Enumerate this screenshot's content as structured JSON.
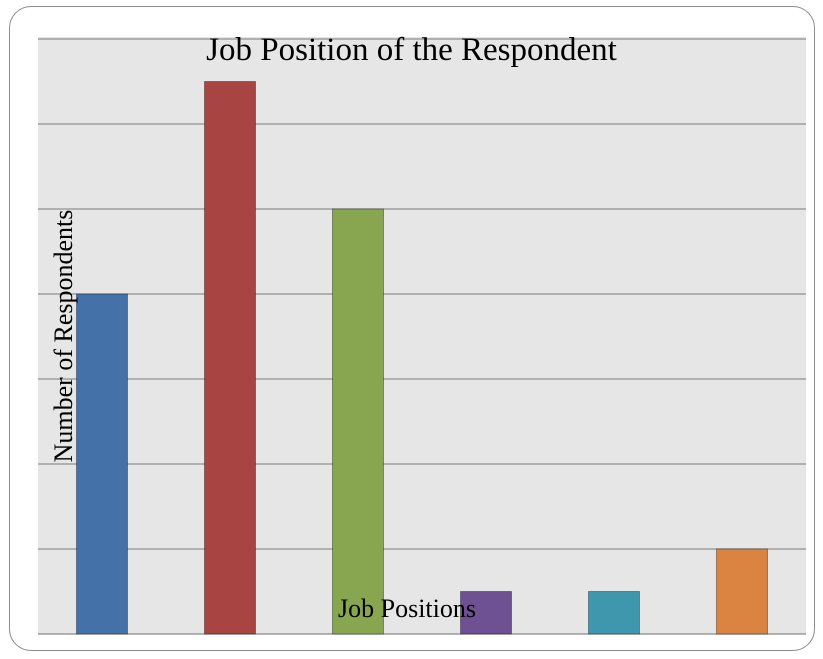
{
  "chart_data": {
    "type": "bar",
    "title": "Job Position of the Respondent",
    "xlabel": "Job Positions",
    "ylabel": "Number of Respondents",
    "categories": [
      "",
      "",
      "",
      "",
      "",
      ""
    ],
    "values": [
      40,
      65,
      50,
      5,
      5,
      10
    ],
    "colors": [
      "#4472a8",
      "#a84441",
      "#88a64f",
      "#6e5192",
      "#3f97ae",
      "#db8441"
    ],
    "ylim": [
      0,
      70
    ],
    "grid": true,
    "legend": "none"
  }
}
